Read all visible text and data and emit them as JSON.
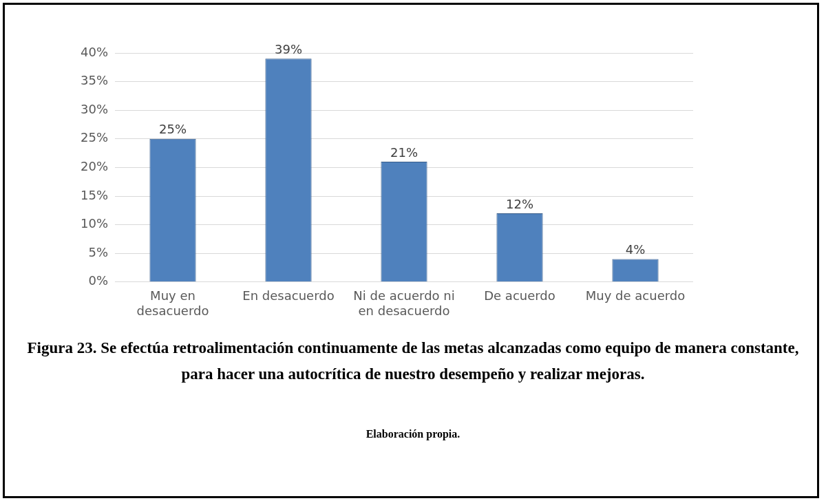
{
  "chart_data": {
    "type": "bar",
    "title": "Figura 23. Se efectúa retroalimentación continuamente de las metas alcanzadas como equipo de manera constante, para hacer una autocrítica de nuestro desempeño y realizar mejoras.",
    "categories": [
      [
        "Muy en",
        "desacuerdo"
      ],
      "En desacuerdo",
      [
        "Ni de acuerdo ni",
        "en desacuerdo"
      ],
      "De acuerdo",
      "Muy de acuerdo"
    ],
    "values": [
      25,
      39,
      21,
      12,
      4
    ],
    "value_labels": [
      "25%",
      "39%",
      "21%",
      "12%",
      "4%"
    ],
    "color": "#4f81bd",
    "ylim": [
      0,
      40
    ],
    "yticks": [
      {
        "value": 0,
        "label": "0%"
      },
      {
        "value": 5,
        "label": "5%"
      },
      {
        "value": 10,
        "label": "10%"
      },
      {
        "value": 15,
        "label": "15%"
      },
      {
        "value": 20,
        "label": "20%"
      },
      {
        "value": 25,
        "label": "25%"
      },
      {
        "value": 30,
        "label": "30%"
      },
      {
        "value": 35,
        "label": "35%"
      },
      {
        "value": 40,
        "label": "40%"
      }
    ],
    "grid": "y",
    "annotations": [
      "Elaboración propia."
    ]
  }
}
